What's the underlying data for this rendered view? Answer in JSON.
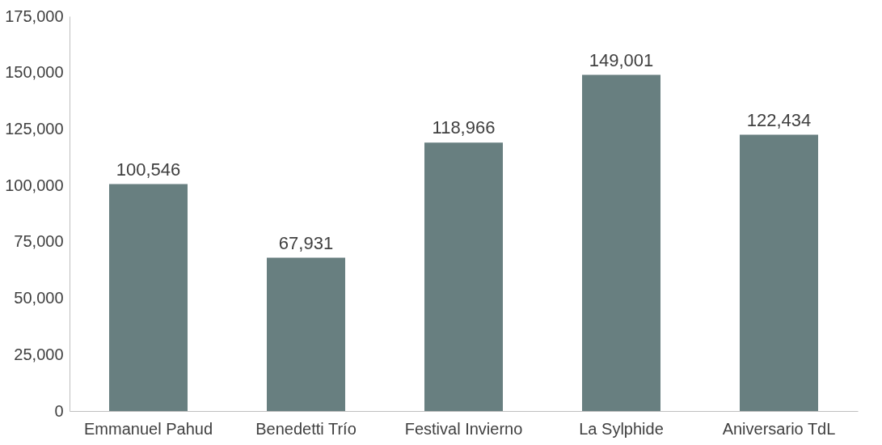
{
  "chart_data": {
    "type": "bar",
    "categories": [
      "Emmanuel Pahud",
      "Benedetti Trío",
      "Festival Invierno",
      "La Sylphide",
      "Aniversario TdL"
    ],
    "values": [
      100546,
      67931,
      118966,
      149001,
      122434
    ],
    "value_labels": [
      "100,546",
      "67,931",
      "118,966",
      "149,001",
      "122,434"
    ],
    "color": "#687f80",
    "ylim": [
      0,
      175000
    ],
    "yticks": [
      0,
      {
        "value": 25000,
        "label": "25,000"
      },
      {
        "value": 50000,
        "label": "50,000"
      },
      {
        "value": 75000,
        "label": "75,000"
      },
      {
        "value": 100000,
        "label": "100,000"
      },
      {
        "value": 125000,
        "label": "125,000"
      },
      {
        "value": 150000,
        "label": "150,000"
      },
      {
        "value": 175000,
        "label": "175,000"
      }
    ],
    "grid": false
  }
}
